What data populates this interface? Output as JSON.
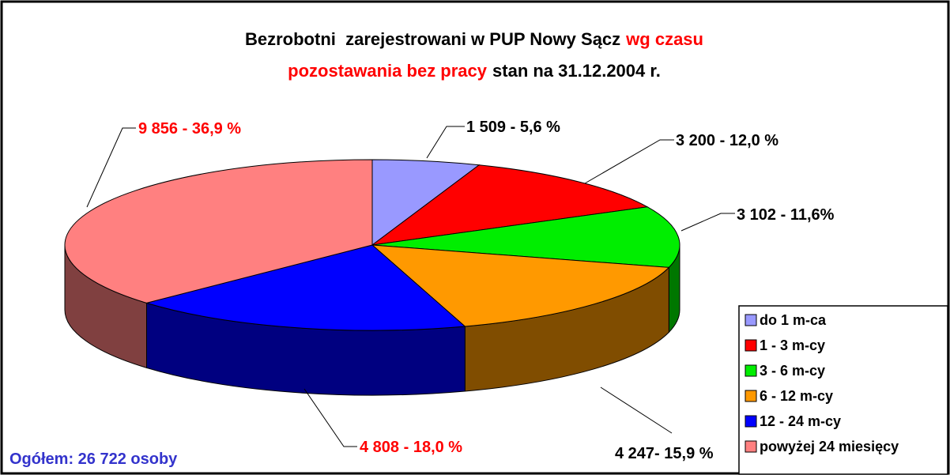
{
  "chart_data": {
    "type": "pie",
    "title_lines": [
      [
        {
          "text": "Bezrobotni  zarejestrowani w PUP Nowy Sącz",
          "color": "#000000"
        },
        {
          "text": "wg czasu",
          "color": "#ff0000"
        }
      ],
      [
        {
          "text": "pozostawania bez pracy",
          "color": "#ff0000"
        },
        {
          "text": "stan na 31.12.2004 r.",
          "color": "#000000"
        }
      ]
    ],
    "categories": [
      "do 1 m-ca",
      "1 - 3 m-cy",
      "3 - 6 m-cy",
      "6 - 12 m-cy",
      "12 - 24 m-cy",
      "powyżej 24 miesięcy"
    ],
    "values": [
      1509,
      3200,
      3102,
      4247,
      4808,
      9856
    ],
    "value_labels": [
      "1 509 - 5,6 %",
      "3 200 - 12,0 %",
      "3 102 - 11,6%",
      "4 247- 15,9 %",
      "4 808 - 18,0 %",
      "9 856 - 36,9 %"
    ],
    "colors": [
      "#9999ff",
      "#ff0000",
      "#00ee00",
      "#ff9900",
      "#0000ff",
      "#ff8080"
    ],
    "value_label_colors": [
      "#000000",
      "#000000",
      "#000000",
      "#000000",
      "#ff0000",
      "#ff0000"
    ],
    "legend": "lower right",
    "annotation": "Ogółem: 26 722 osoby"
  }
}
